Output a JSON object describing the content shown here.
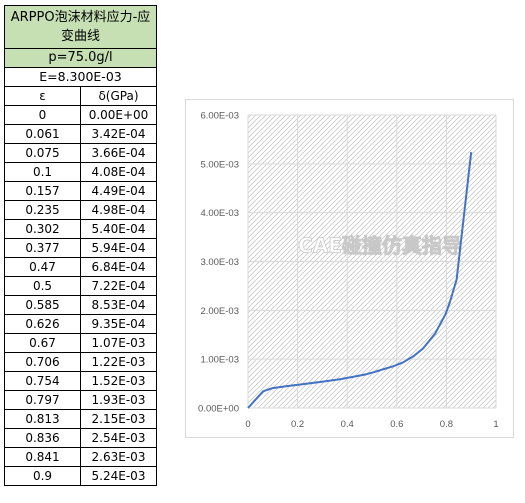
{
  "table": {
    "title": "ARPPO泡沫材料应力-应变曲线",
    "density": "p=75.0g/l",
    "modulus": "E=8.300E-03",
    "headers": [
      "ε",
      "δ(GPa)"
    ],
    "rows": [
      [
        "0",
        "0.00E+00"
      ],
      [
        "0.061",
        "3.42E-04"
      ],
      [
        "0.075",
        "3.66E-04"
      ],
      [
        "0.1",
        "4.08E-04"
      ],
      [
        "0.157",
        "4.49E-04"
      ],
      [
        "0.235",
        "4.98E-04"
      ],
      [
        "0.302",
        "5.40E-04"
      ],
      [
        "0.377",
        "5.94E-04"
      ],
      [
        "0.47",
        "6.84E-04"
      ],
      [
        "0.5",
        "7.22E-04"
      ],
      [
        "0.585",
        "8.53E-04"
      ],
      [
        "0.626",
        "9.35E-04"
      ],
      [
        "0.67",
        "1.07E-03"
      ],
      [
        "0.706",
        "1.22E-03"
      ],
      [
        "0.754",
        "1.52E-03"
      ],
      [
        "0.797",
        "1.93E-03"
      ],
      [
        "0.813",
        "2.15E-03"
      ],
      [
        "0.836",
        "2.54E-03"
      ],
      [
        "0.841",
        "2.63E-03"
      ],
      [
        "0.9",
        "5.24E-03"
      ]
    ]
  },
  "watermark": "CAE碰撞仿真指导",
  "chart_data": {
    "type": "line",
    "title": "",
    "xlabel": "",
    "ylabel": "",
    "xlim": [
      0,
      1
    ],
    "ylim": [
      0,
      0.006
    ],
    "x_ticks": [
      "0",
      "0.2",
      "0.4",
      "0.6",
      "0.8",
      "1"
    ],
    "y_ticks": [
      "0.00E+00",
      "1.00E-03",
      "2.00E-03",
      "3.00E-03",
      "4.00E-03",
      "5.00E-03",
      "6.00E-03"
    ],
    "grid": true,
    "plot_area_pattern": "diagonal-hatch",
    "line_color": "#4472c4",
    "series": [
      {
        "x": [
          0,
          0.061,
          0.075,
          0.1,
          0.157,
          0.235,
          0.302,
          0.377,
          0.47,
          0.5,
          0.585,
          0.626,
          0.67,
          0.706,
          0.754,
          0.797,
          0.813,
          0.836,
          0.841,
          0.9
        ],
        "y": [
          0,
          0.000342,
          0.000366,
          0.000408,
          0.000449,
          0.000498,
          0.00054,
          0.000594,
          0.000684,
          0.000722,
          0.000853,
          0.000935,
          0.00107,
          0.00122,
          0.00152,
          0.00193,
          0.00215,
          0.00254,
          0.00263,
          0.00524
        ]
      }
    ]
  }
}
